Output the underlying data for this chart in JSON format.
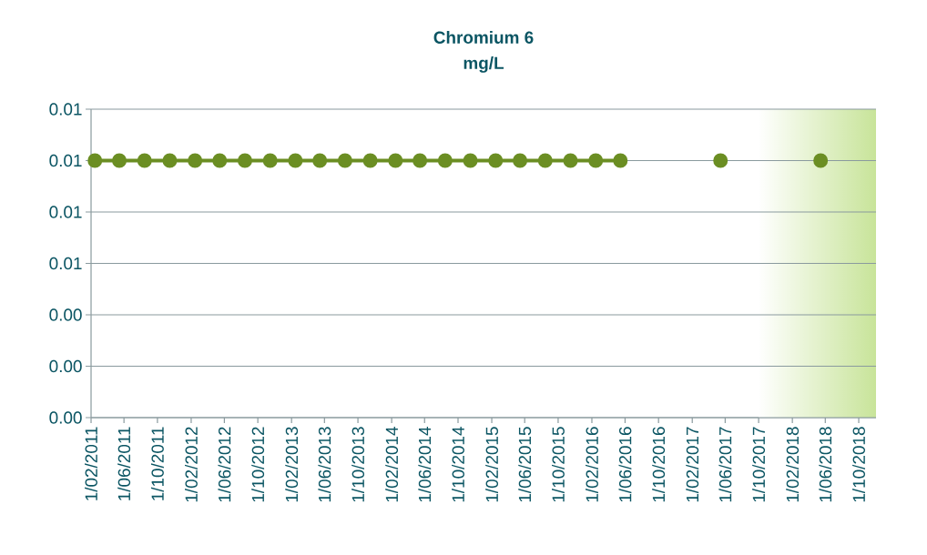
{
  "chart_data": {
    "type": "line",
    "title": "Chromium 6",
    "subtitle": "mg/L",
    "x": [
      "2011-02-15",
      "2011-05-15",
      "2011-08-15",
      "2011-11-15",
      "2012-02-15",
      "2012-05-15",
      "2012-08-15",
      "2012-11-15",
      "2013-02-15",
      "2013-05-15",
      "2013-08-15",
      "2013-11-15",
      "2014-02-15",
      "2014-05-15",
      "2014-08-15",
      "2014-11-15",
      "2015-02-15",
      "2015-05-15",
      "2015-08-15",
      "2015-11-15",
      "2016-02-15",
      "2016-05-15",
      "2016-08-15",
      "2016-11-15",
      "2017-02-15",
      "2017-05-15",
      "2017-08-15",
      "2017-11-15",
      "2018-02-15",
      "2018-05-15"
    ],
    "series": [
      {
        "color": "#6b8e23",
        "values": [
          0.01,
          0.01,
          0.01,
          0.01,
          0.01,
          0.01,
          0.01,
          0.01,
          0.01,
          0.01,
          0.01,
          0.01,
          0.01,
          0.01,
          0.01,
          0.01,
          0.01,
          0.01,
          0.01,
          0.01,
          0.01,
          0.01,
          null,
          null,
          null,
          0.01,
          null,
          null,
          null,
          0.01
        ]
      }
    ],
    "marker": "circle",
    "line_style": "solid",
    "grid": "y",
    "xlim": [
      "2011-02-01",
      "2018-12-03"
    ],
    "xticks": [
      {
        "value": "2011-02-01",
        "label": "1/02/2011"
      },
      {
        "value": "2011-06-01",
        "label": "1/06/2011"
      },
      {
        "value": "2011-10-01",
        "label": "1/10/2011"
      },
      {
        "value": "2012-02-01",
        "label": "1/02/2012"
      },
      {
        "value": "2012-06-01",
        "label": "1/06/2012"
      },
      {
        "value": "2012-10-01",
        "label": "1/10/2012"
      },
      {
        "value": "2013-02-01",
        "label": "1/02/2013"
      },
      {
        "value": "2013-06-01",
        "label": "1/06/2013"
      },
      {
        "value": "2013-10-01",
        "label": "1/10/2013"
      },
      {
        "value": "2014-02-01",
        "label": "1/02/2014"
      },
      {
        "value": "2014-06-01",
        "label": "1/06/2014"
      },
      {
        "value": "2014-10-01",
        "label": "1/10/2014"
      },
      {
        "value": "2015-02-01",
        "label": "1/02/2015"
      },
      {
        "value": "2015-06-01",
        "label": "1/06/2015"
      },
      {
        "value": "2015-10-01",
        "label": "1/10/2015"
      },
      {
        "value": "2016-02-01",
        "label": "1/02/2016"
      },
      {
        "value": "2016-06-01",
        "label": "1/06/2016"
      },
      {
        "value": "2016-10-01",
        "label": "1/10/2016"
      },
      {
        "value": "2017-02-01",
        "label": "1/02/2017"
      },
      {
        "value": "2017-06-01",
        "label": "1/06/2017"
      },
      {
        "value": "2017-10-01",
        "label": "1/10/2017"
      },
      {
        "value": "2018-02-01",
        "label": "1/02/2018"
      },
      {
        "value": "2018-06-01",
        "label": "1/06/2018"
      },
      {
        "value": "2018-10-01",
        "label": "1/10/2018"
      }
    ],
    "ylim": [
      0,
      0.012
    ],
    "yticks": [
      {
        "value": 0,
        "label": "0.00"
      },
      {
        "value": 0.002,
        "label": "0.00"
      },
      {
        "value": 0.004,
        "label": "0.00"
      },
      {
        "value": 0.006,
        "label": "0.01"
      },
      {
        "value": 0.008,
        "label": "0.01"
      },
      {
        "value": 0.01,
        "label": "0.01"
      },
      {
        "value": 0.012,
        "label": "0.01"
      }
    ],
    "bands": [
      {
        "axis": "x",
        "from": "2017-10-01",
        "to": "2018-12-03",
        "color": "#c8e49a"
      }
    ]
  }
}
